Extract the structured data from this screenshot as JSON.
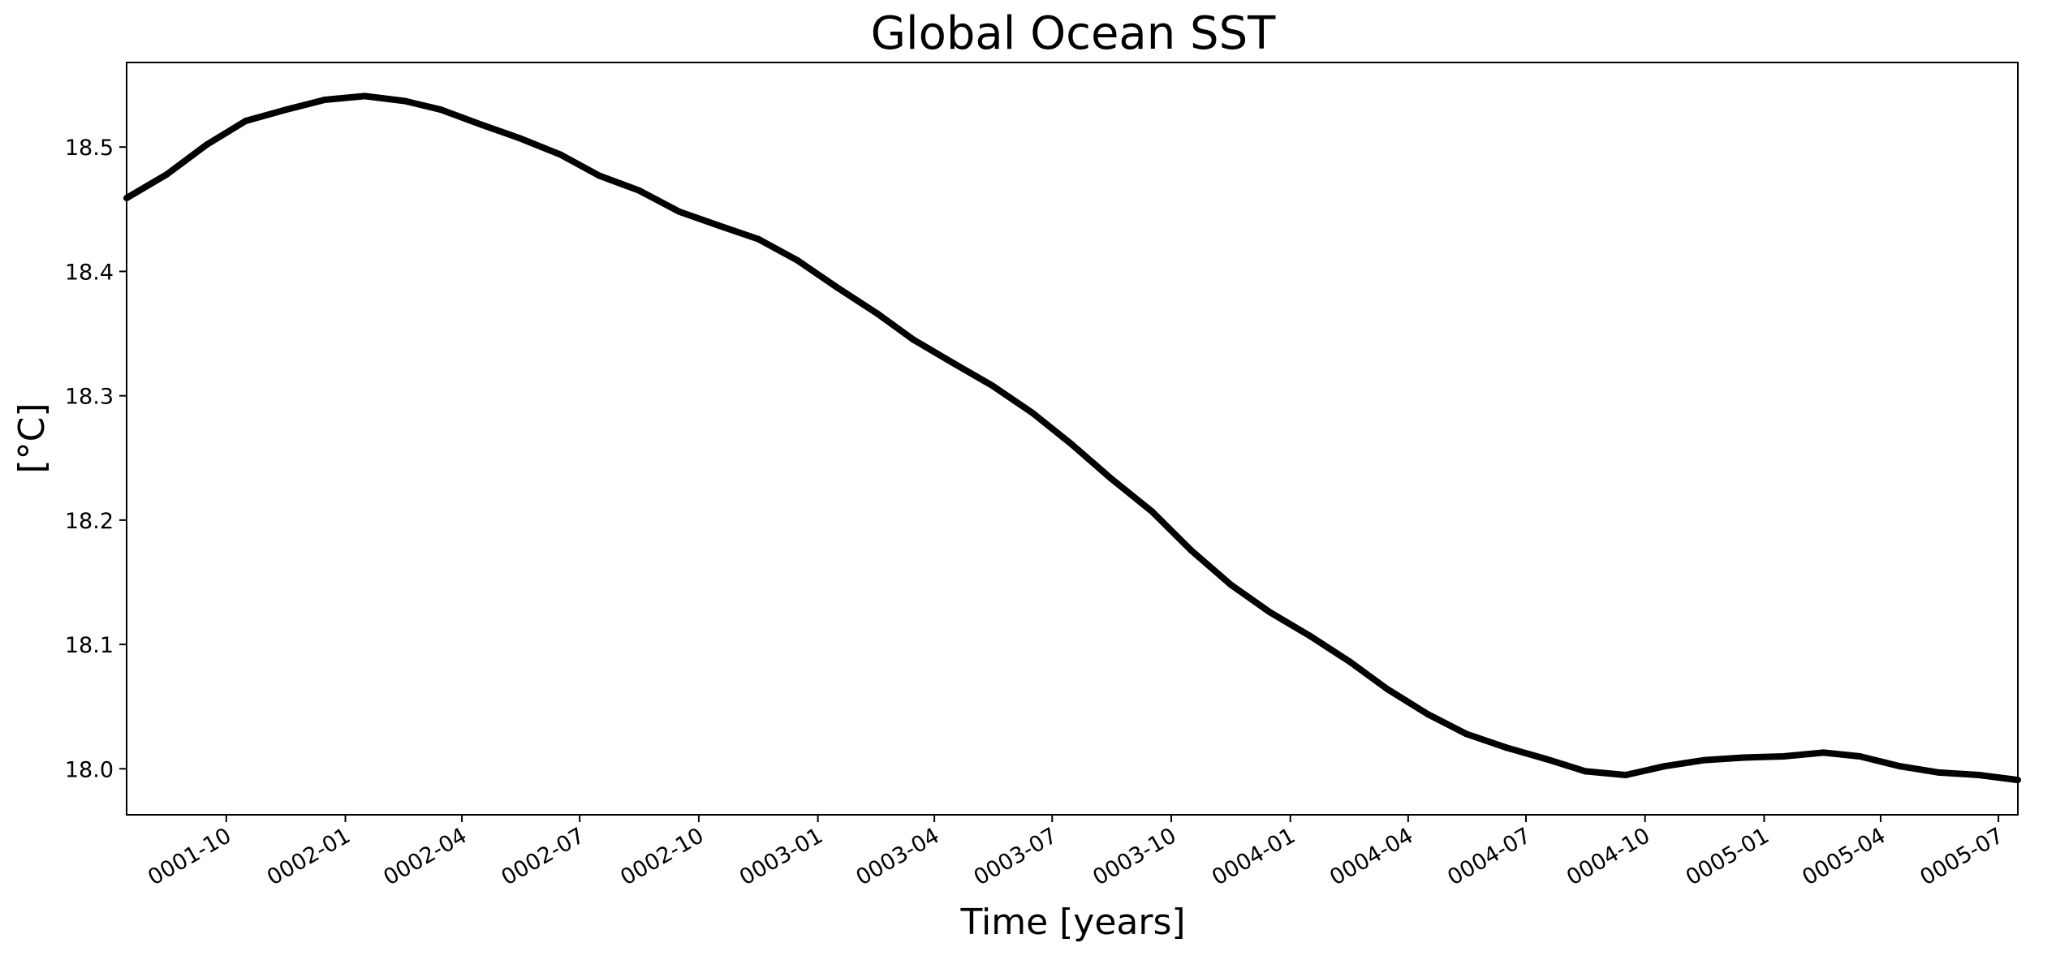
{
  "chart_data": {
    "type": "line",
    "title": "Global Ocean SST",
    "xlabel": "Time [years]",
    "ylabel": "[°C]",
    "x_type": "date",
    "xlim": [
      "0001-07-16",
      "0005-07-16"
    ],
    "ylim": [
      17.963,
      18.568
    ],
    "grid": false,
    "legend": "none",
    "line_color": "#000000",
    "x_ticks": [
      {
        "date": "0001-10-01",
        "label": "0001-10"
      },
      {
        "date": "0002-01-01",
        "label": "0002-01"
      },
      {
        "date": "0002-04-01",
        "label": "0002-04"
      },
      {
        "date": "0002-07-01",
        "label": "0002-07"
      },
      {
        "date": "0002-10-01",
        "label": "0002-10"
      },
      {
        "date": "0003-01-01",
        "label": "0003-01"
      },
      {
        "date": "0003-04-01",
        "label": "0003-04"
      },
      {
        "date": "0003-07-01",
        "label": "0003-07"
      },
      {
        "date": "0003-10-01",
        "label": "0003-10"
      },
      {
        "date": "0004-01-01",
        "label": "0004-01"
      },
      {
        "date": "0004-04-01",
        "label": "0004-04"
      },
      {
        "date": "0004-07-01",
        "label": "0004-07"
      },
      {
        "date": "0004-10-01",
        "label": "0004-10"
      },
      {
        "date": "0005-01-01",
        "label": "0005-01"
      },
      {
        "date": "0005-04-01",
        "label": "0005-04"
      },
      {
        "date": "0005-07-01",
        "label": "0005-07"
      }
    ],
    "y_ticks": [
      {
        "value": 18.0,
        "label": "18.0"
      },
      {
        "value": 18.1,
        "label": "18.1"
      },
      {
        "value": 18.2,
        "label": "18.2"
      },
      {
        "value": 18.3,
        "label": "18.3"
      },
      {
        "value": 18.4,
        "label": "18.4"
      },
      {
        "value": 18.5,
        "label": "18.5"
      }
    ],
    "series": [
      {
        "x": [
          "0001-07-16",
          "0001-08-16",
          "0001-09-16",
          "0001-10-16",
          "0001-11-16",
          "0001-12-16",
          "0002-01-16",
          "0002-02-16",
          "0002-03-16",
          "0002-04-16",
          "0002-05-16",
          "0002-06-16",
          "0002-07-16",
          "0002-08-16",
          "0002-09-16",
          "0002-10-16",
          "0002-11-16",
          "0002-12-16",
          "0003-01-16",
          "0003-02-16",
          "0003-03-16",
          "0003-04-16",
          "0003-05-16",
          "0003-06-16",
          "0003-07-16",
          "0003-08-16",
          "0003-09-16",
          "0003-10-16",
          "0003-11-16",
          "0003-12-16",
          "0004-01-16",
          "0004-02-16",
          "0004-03-16",
          "0004-04-16",
          "0004-05-16",
          "0004-06-16",
          "0004-07-16",
          "0004-08-16",
          "0004-09-16",
          "0004-10-16",
          "0004-11-16",
          "0004-12-16",
          "0005-01-16",
          "0005-02-16",
          "0005-03-16",
          "0005-04-16",
          "0005-05-16",
          "0005-06-16",
          "0005-07-16"
        ],
        "y": [
          18.459,
          18.478,
          18.502,
          18.521,
          18.53,
          18.538,
          18.541,
          18.537,
          18.53,
          18.518,
          18.507,
          18.494,
          18.477,
          18.465,
          18.448,
          18.437,
          18.426,
          18.409,
          18.387,
          18.366,
          18.345,
          18.326,
          18.308,
          18.286,
          18.261,
          18.233,
          18.207,
          18.176,
          18.148,
          18.126,
          18.107,
          18.086,
          18.064,
          18.044,
          18.028,
          18.017,
          18.008,
          17.998,
          17.995,
          18.002,
          18.007,
          18.009,
          18.01,
          18.013,
          18.01,
          18.002,
          17.997,
          17.995,
          17.991
        ]
      }
    ]
  }
}
